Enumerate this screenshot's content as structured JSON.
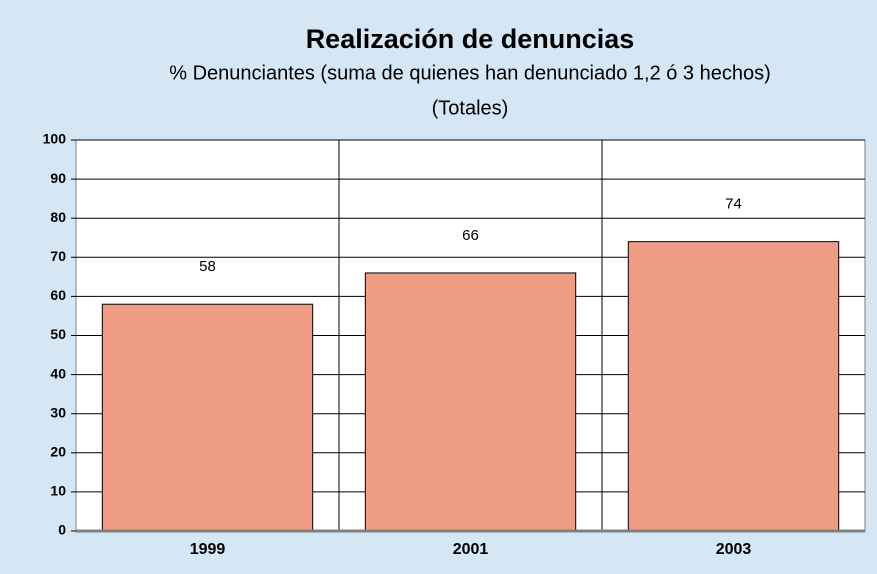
{
  "chart_data": {
    "type": "bar",
    "title": "Realización de denuncias",
    "subtitle": "% Denunciantes (suma de quienes han denunciado 1,2 ó 3 hechos)",
    "subtitle2": "(Totales)",
    "categories": [
      "1999",
      "2001",
      "2003"
    ],
    "values": [
      58,
      66,
      74
    ],
    "color": "#ee9c84",
    "ylim": [
      0,
      100
    ],
    "yticks": [
      0,
      10,
      20,
      30,
      40,
      50,
      60,
      70,
      80,
      90,
      100
    ],
    "grid": true
  }
}
